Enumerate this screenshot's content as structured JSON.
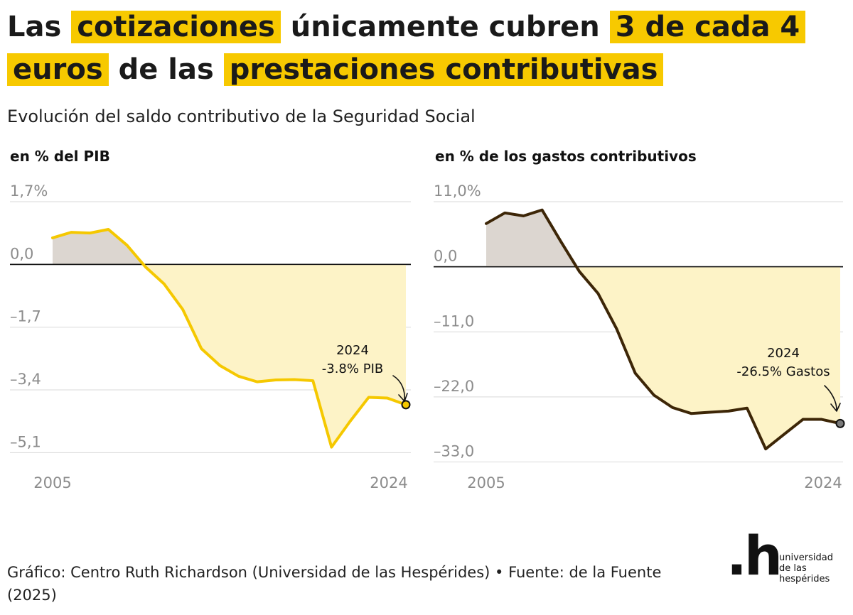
{
  "title": {
    "p1": "Las",
    "h1": "cotizaciones",
    "p2": "únicamente cubren",
    "h2": "3 de cada 4 euros",
    "p3": "de las",
    "h3": "prestaciones contributivas"
  },
  "subtitle": "Evolución del saldo contributivo de la Seguridad Social",
  "colors": {
    "highlight": "#f7c900",
    "pib_line": "#f5c800",
    "gastos_line": "#3d2607",
    "negative_fill": "#fdf3c7",
    "positive_fill": "#dcd6d0",
    "grid": "#d9d9d9",
    "tick_text": "#8c8c8c"
  },
  "chart_data": [
    {
      "type": "area",
      "panel_label": "en % del PIB",
      "x_tick_labels": [
        "2005",
        "2024"
      ],
      "y_ticks": [
        1.7,
        0,
        -1.7,
        -3.4,
        -5.1
      ],
      "y_tick_labels": [
        "1,7%",
        "0,0",
        "–1,7",
        "–3,4",
        "–5,1"
      ],
      "ylim": [
        -5.4,
        1.7
      ],
      "x": [
        2005,
        2006,
        2007,
        2008,
        2009,
        2010,
        2011,
        2012,
        2013,
        2014,
        2015,
        2016,
        2017,
        2018,
        2019,
        2020,
        2021,
        2022,
        2023,
        2024
      ],
      "series": [
        {
          "values": [
            0.72,
            0.87,
            0.85,
            0.95,
            0.52,
            -0.07,
            -0.53,
            -1.22,
            -2.28,
            -2.74,
            -3.03,
            -3.18,
            -3.13,
            -3.12,
            -3.15,
            -4.95,
            -4.25,
            -3.6,
            -3.62,
            -3.8
          ]
        }
      ],
      "annotation": {
        "year": "2024",
        "text": "-3.8% PIB"
      }
    },
    {
      "type": "area",
      "panel_label": "en % de los gastos contributivos",
      "x_tick_labels": [
        "2005",
        "2024"
      ],
      "y_ticks": [
        11.0,
        0,
        -11.0,
        -22.0,
        -33.0
      ],
      "y_tick_labels": [
        "11,0%",
        "0,0",
        "–11,0",
        "–22,0",
        "–33,0"
      ],
      "ylim": [
        -33.3,
        11.0
      ],
      "x": [
        2005,
        2006,
        2007,
        2008,
        2009,
        2010,
        2011,
        2012,
        2013,
        2014,
        2015,
        2016,
        2017,
        2018,
        2019,
        2020,
        2021,
        2022,
        2023,
        2024
      ],
      "series": [
        {
          "values": [
            7.3,
            9.1,
            8.6,
            9.6,
            4.3,
            -0.8,
            -4.5,
            -10.5,
            -18.0,
            -21.7,
            -23.8,
            -24.8,
            -24.6,
            -24.4,
            -23.9,
            -30.8,
            -28.3,
            -25.8,
            -25.8,
            -26.5
          ]
        }
      ],
      "annotation": {
        "year": "2024",
        "text": "-26.5% Gastos"
      }
    }
  ],
  "footer": "Gráfico: Centro Ruth Richardson (Universidad de las Hespérides) • Fuente: de la Fuente (2025)",
  "logo": {
    "mark": ".h",
    "lines": [
      "universidad",
      "de las",
      "hespérides"
    ]
  }
}
